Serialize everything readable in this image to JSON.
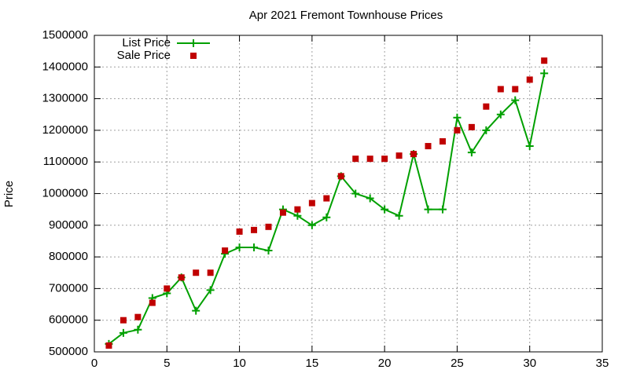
{
  "chart_data": {
    "type": "line",
    "title": "Apr 2021 Fremont Townhouse Prices",
    "y_label": "Price",
    "xlim": [
      0,
      35
    ],
    "xticks": [
      0,
      5,
      10,
      15,
      20,
      25,
      30,
      35
    ],
    "ylim": [
      500000,
      1500000
    ],
    "yticks": [
      500000,
      600000,
      700000,
      800000,
      900000,
      1000000,
      1100000,
      1200000,
      1300000,
      1400000,
      1500000
    ],
    "grid": true,
    "legend": "top-left",
    "x": [
      1,
      2,
      3,
      4,
      5,
      6,
      7,
      8,
      9,
      10,
      11,
      12,
      13,
      14,
      15,
      16,
      17,
      18,
      19,
      20,
      21,
      22,
      23,
      24,
      25,
      26,
      27,
      28,
      29,
      30,
      31
    ],
    "series": [
      {
        "name": "List Price",
        "color": "#00a000",
        "style": "linespoints",
        "values": [
          525000,
          560000,
          570000,
          670000,
          685000,
          735000,
          630000,
          695000,
          810000,
          830000,
          830000,
          820000,
          950000,
          930000,
          900000,
          925000,
          1055000,
          1000000,
          985000,
          950000,
          930000,
          1125000,
          950000,
          950000,
          1240000,
          1130000,
          1200000,
          1250000,
          1295000,
          1150000,
          1380000
        ]
      },
      {
        "name": "Sale Price",
        "color": "#c00000",
        "style": "points",
        "values": [
          520000,
          600000,
          610000,
          655000,
          700000,
          735000,
          750000,
          750000,
          820000,
          880000,
          885000,
          895000,
          940000,
          950000,
          970000,
          985000,
          1055000,
          1110000,
          1110000,
          1110000,
          1120000,
          1125000,
          1150000,
          1165000,
          1200000,
          1210000,
          1275000,
          1330000,
          1330000,
          1360000,
          1420000
        ]
      }
    ]
  }
}
